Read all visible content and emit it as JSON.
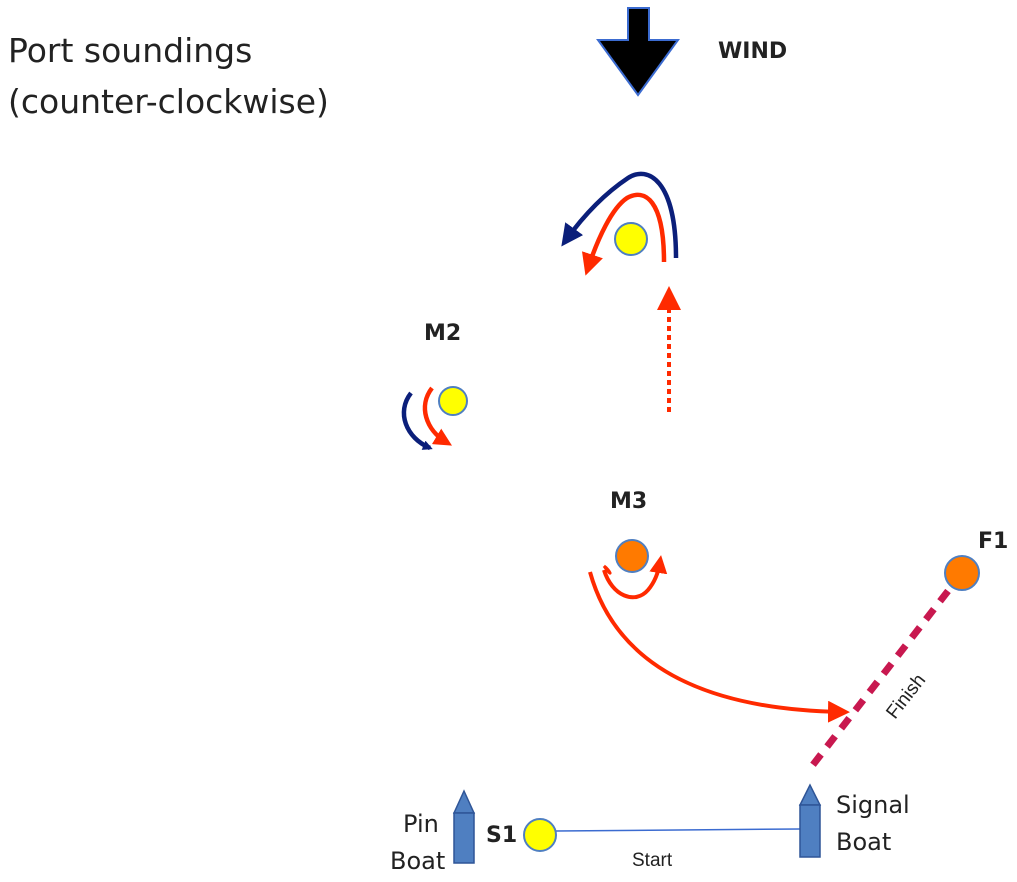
{
  "title": {
    "line1": "Port soundings",
    "line2": "(counter-clockwise)"
  },
  "wind": {
    "label": "WIND"
  },
  "marks": {
    "m2": "M2",
    "m3": "M3",
    "f1": "F1",
    "s1": "S1"
  },
  "boats": {
    "pin_line1": "Pin",
    "pin_line2": "Boat",
    "signal_line1": "Signal",
    "signal_line2": "Boat"
  },
  "lines": {
    "start": "Start",
    "finish": "Finish"
  },
  "colors": {
    "navy": "#0b1f7a",
    "red": "#ff2a00",
    "yellow_mark": "#ffff00",
    "orange_mark": "#ff7a00",
    "boat_blue": "#4f7fc1",
    "finish_line": "#c8184f",
    "wind_arrow": "#000000"
  },
  "icons": {
    "wind": "down-arrow-icon",
    "boat": "boat-icon"
  }
}
